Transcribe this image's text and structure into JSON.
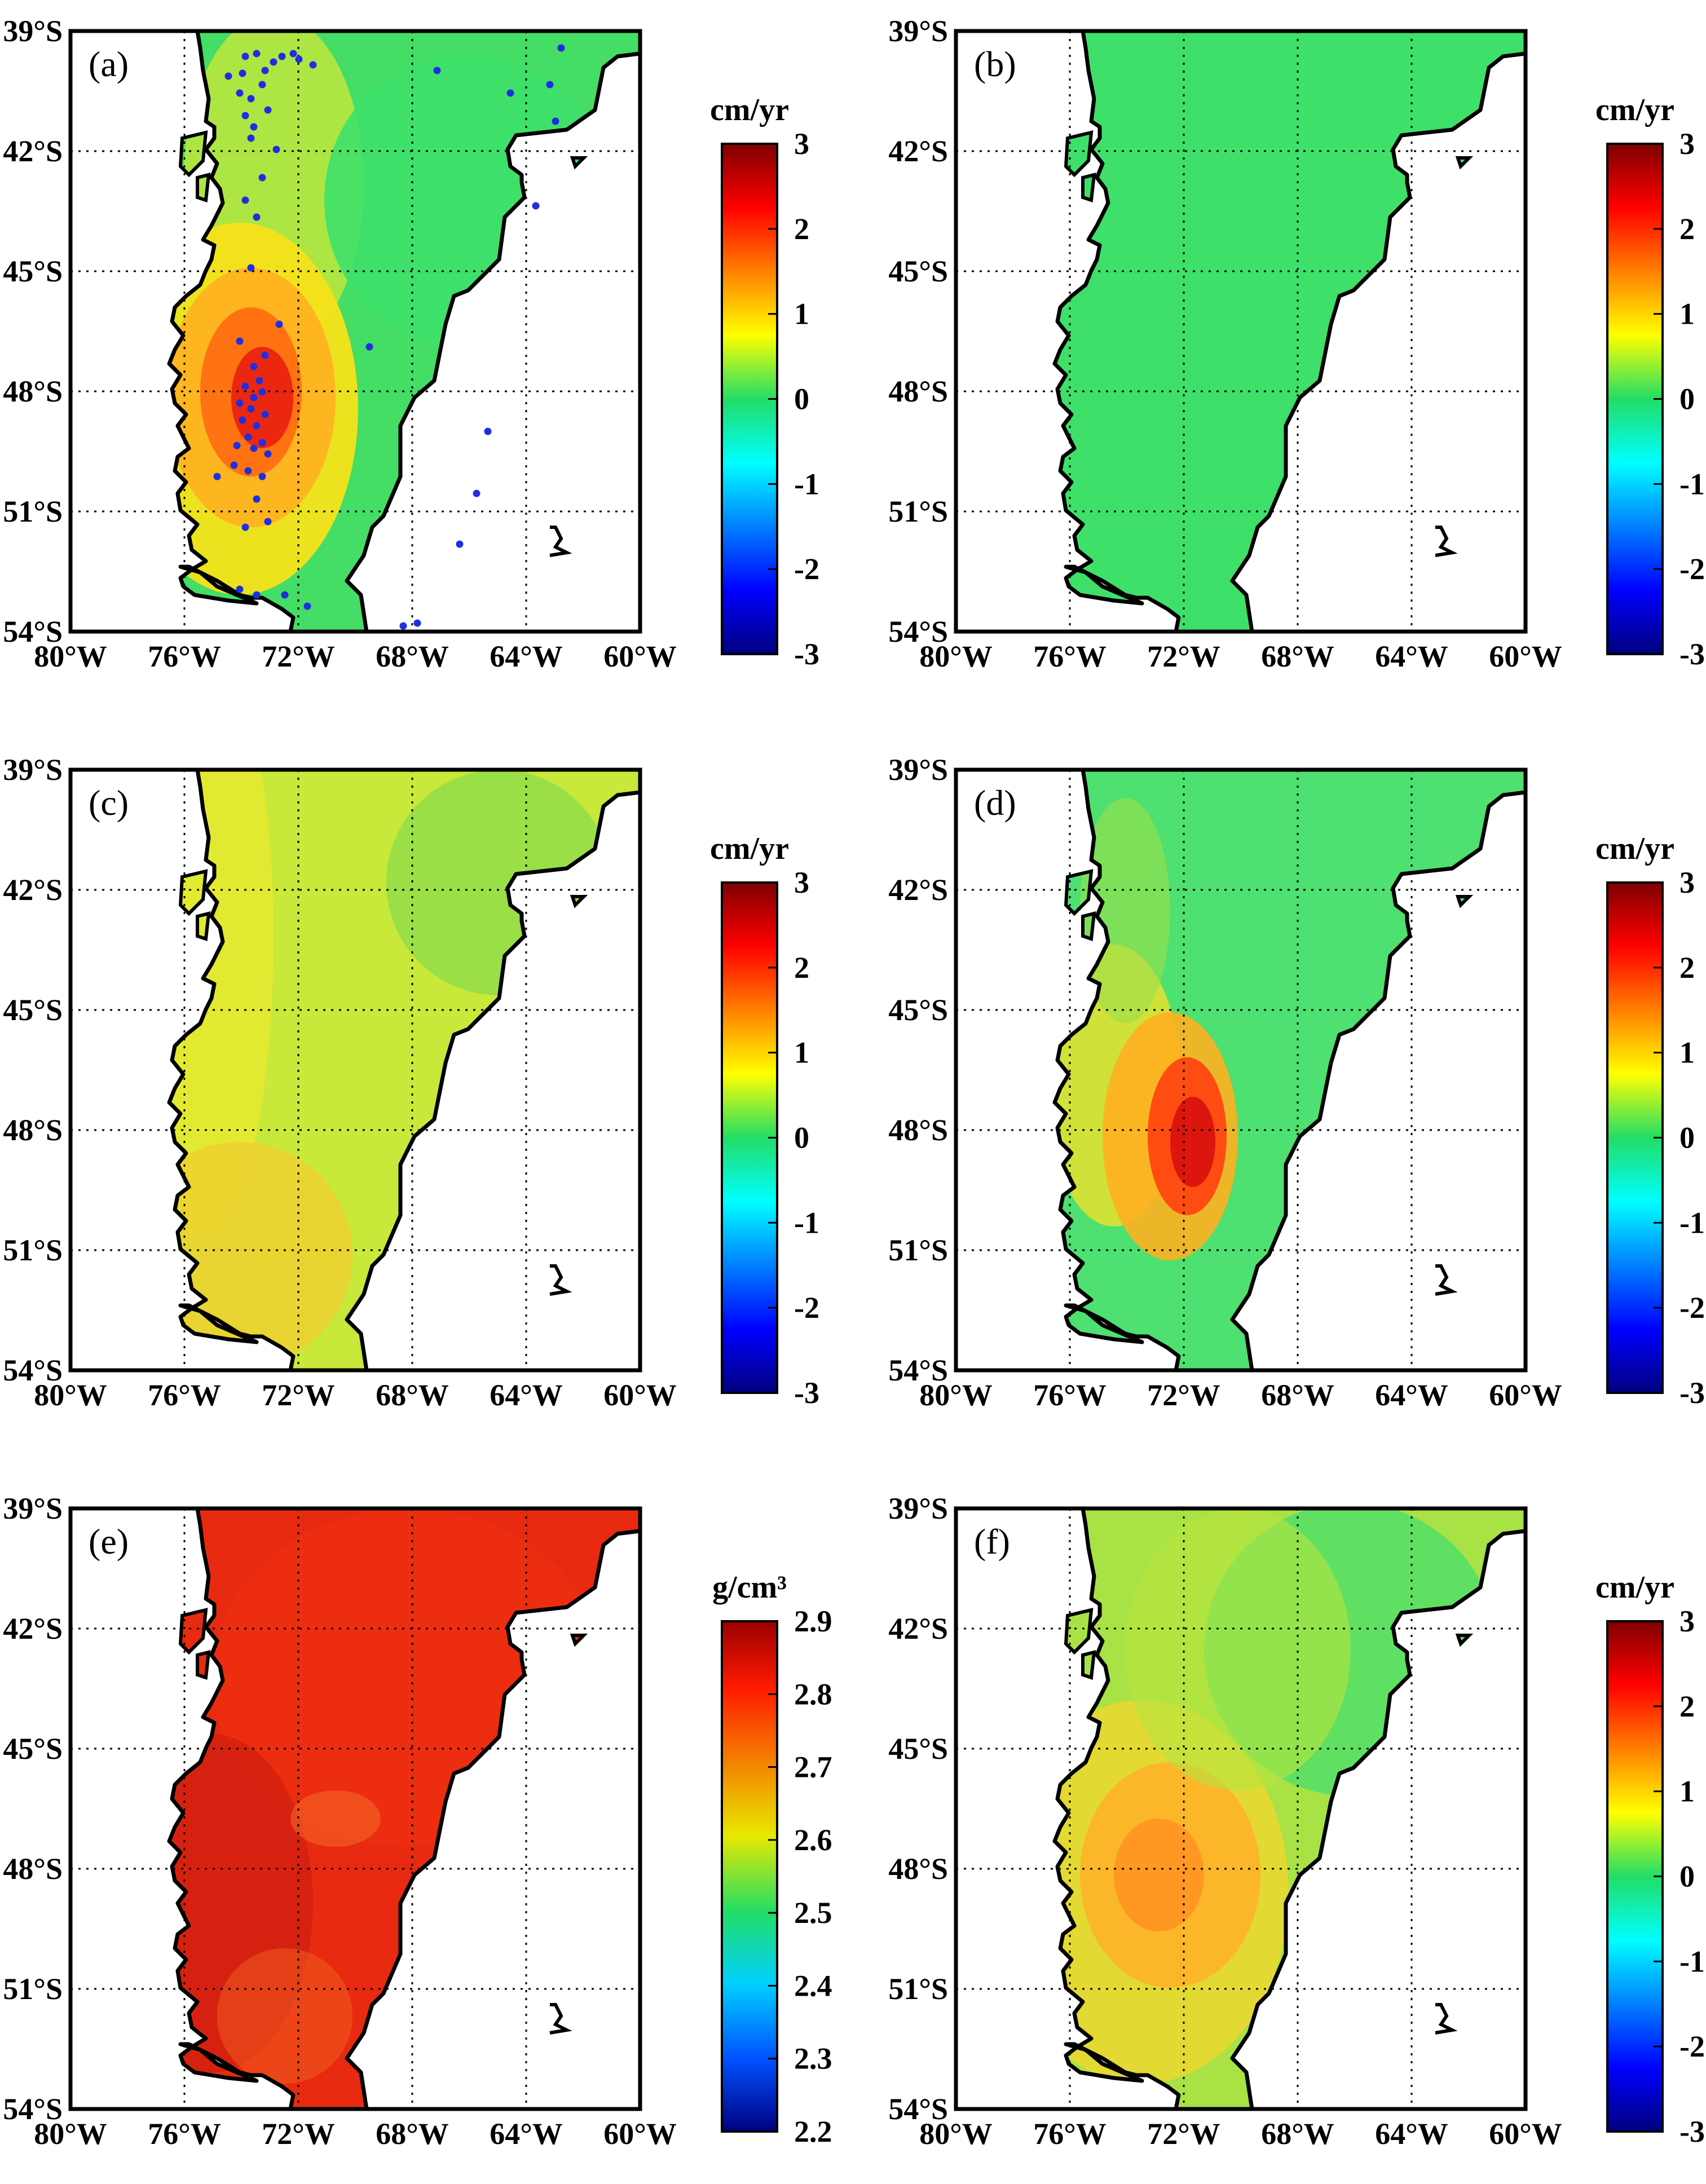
{
  "figure": {
    "lat_labels": [
      "39°S",
      "42°S",
      "45°S",
      "48°S",
      "51°S",
      "54°S"
    ],
    "lon_labels": [
      "80°W",
      "76°W",
      "72°W",
      "68°W",
      "64°W",
      "60°W"
    ],
    "lat_values": [
      -39,
      -42,
      -45,
      -48,
      -51,
      -54
    ],
    "lon_values": [
      -80,
      -76,
      -72,
      -68,
      -64,
      -60
    ],
    "panels": [
      {
        "id": "a",
        "label": "(a)",
        "unit": "cm/yr",
        "cbar_ticks": [
          "3",
          "2",
          "1",
          "0",
          "-1",
          "-2",
          "-3"
        ],
        "field": "uplift_obs",
        "show_stations": true
      },
      {
        "id": "b",
        "label": "(b)",
        "unit": "cm/yr",
        "cbar_ticks": [
          "3",
          "2",
          "1",
          "0",
          "-1",
          "-2",
          "-3"
        ],
        "field": "flat_zero",
        "show_stations": false
      },
      {
        "id": "c",
        "label": "(c)",
        "unit": "cm/yr",
        "cbar_ticks": [
          "3",
          "2",
          "1",
          "0",
          "-1",
          "-2",
          "-3"
        ],
        "field": "broad_yellow",
        "show_stations": false
      },
      {
        "id": "d",
        "label": "(d)",
        "unit": "cm/yr",
        "cbar_ticks": [
          "3",
          "2",
          "1",
          "0",
          "-1",
          "-2",
          "-3"
        ],
        "field": "peak_red",
        "show_stations": false
      },
      {
        "id": "e",
        "label": "(e)",
        "unit": "g/cm³",
        "cbar_ticks": [
          "2.9",
          "2.8",
          "2.7",
          "2.6",
          "2.5",
          "2.4",
          "2.3",
          "2.2"
        ],
        "field": "density",
        "show_stations": false
      },
      {
        "id": "f",
        "label": "(f)",
        "unit": "cm/yr",
        "cbar_ticks": [
          "3",
          "2",
          "1",
          "0",
          "-1",
          "-2",
          "-3"
        ],
        "field": "broad_orange",
        "show_stations": false
      }
    ],
    "colors": {
      "station": "#1f2fe0",
      "coast": "#000000",
      "grid": "#000000"
    }
  }
}
